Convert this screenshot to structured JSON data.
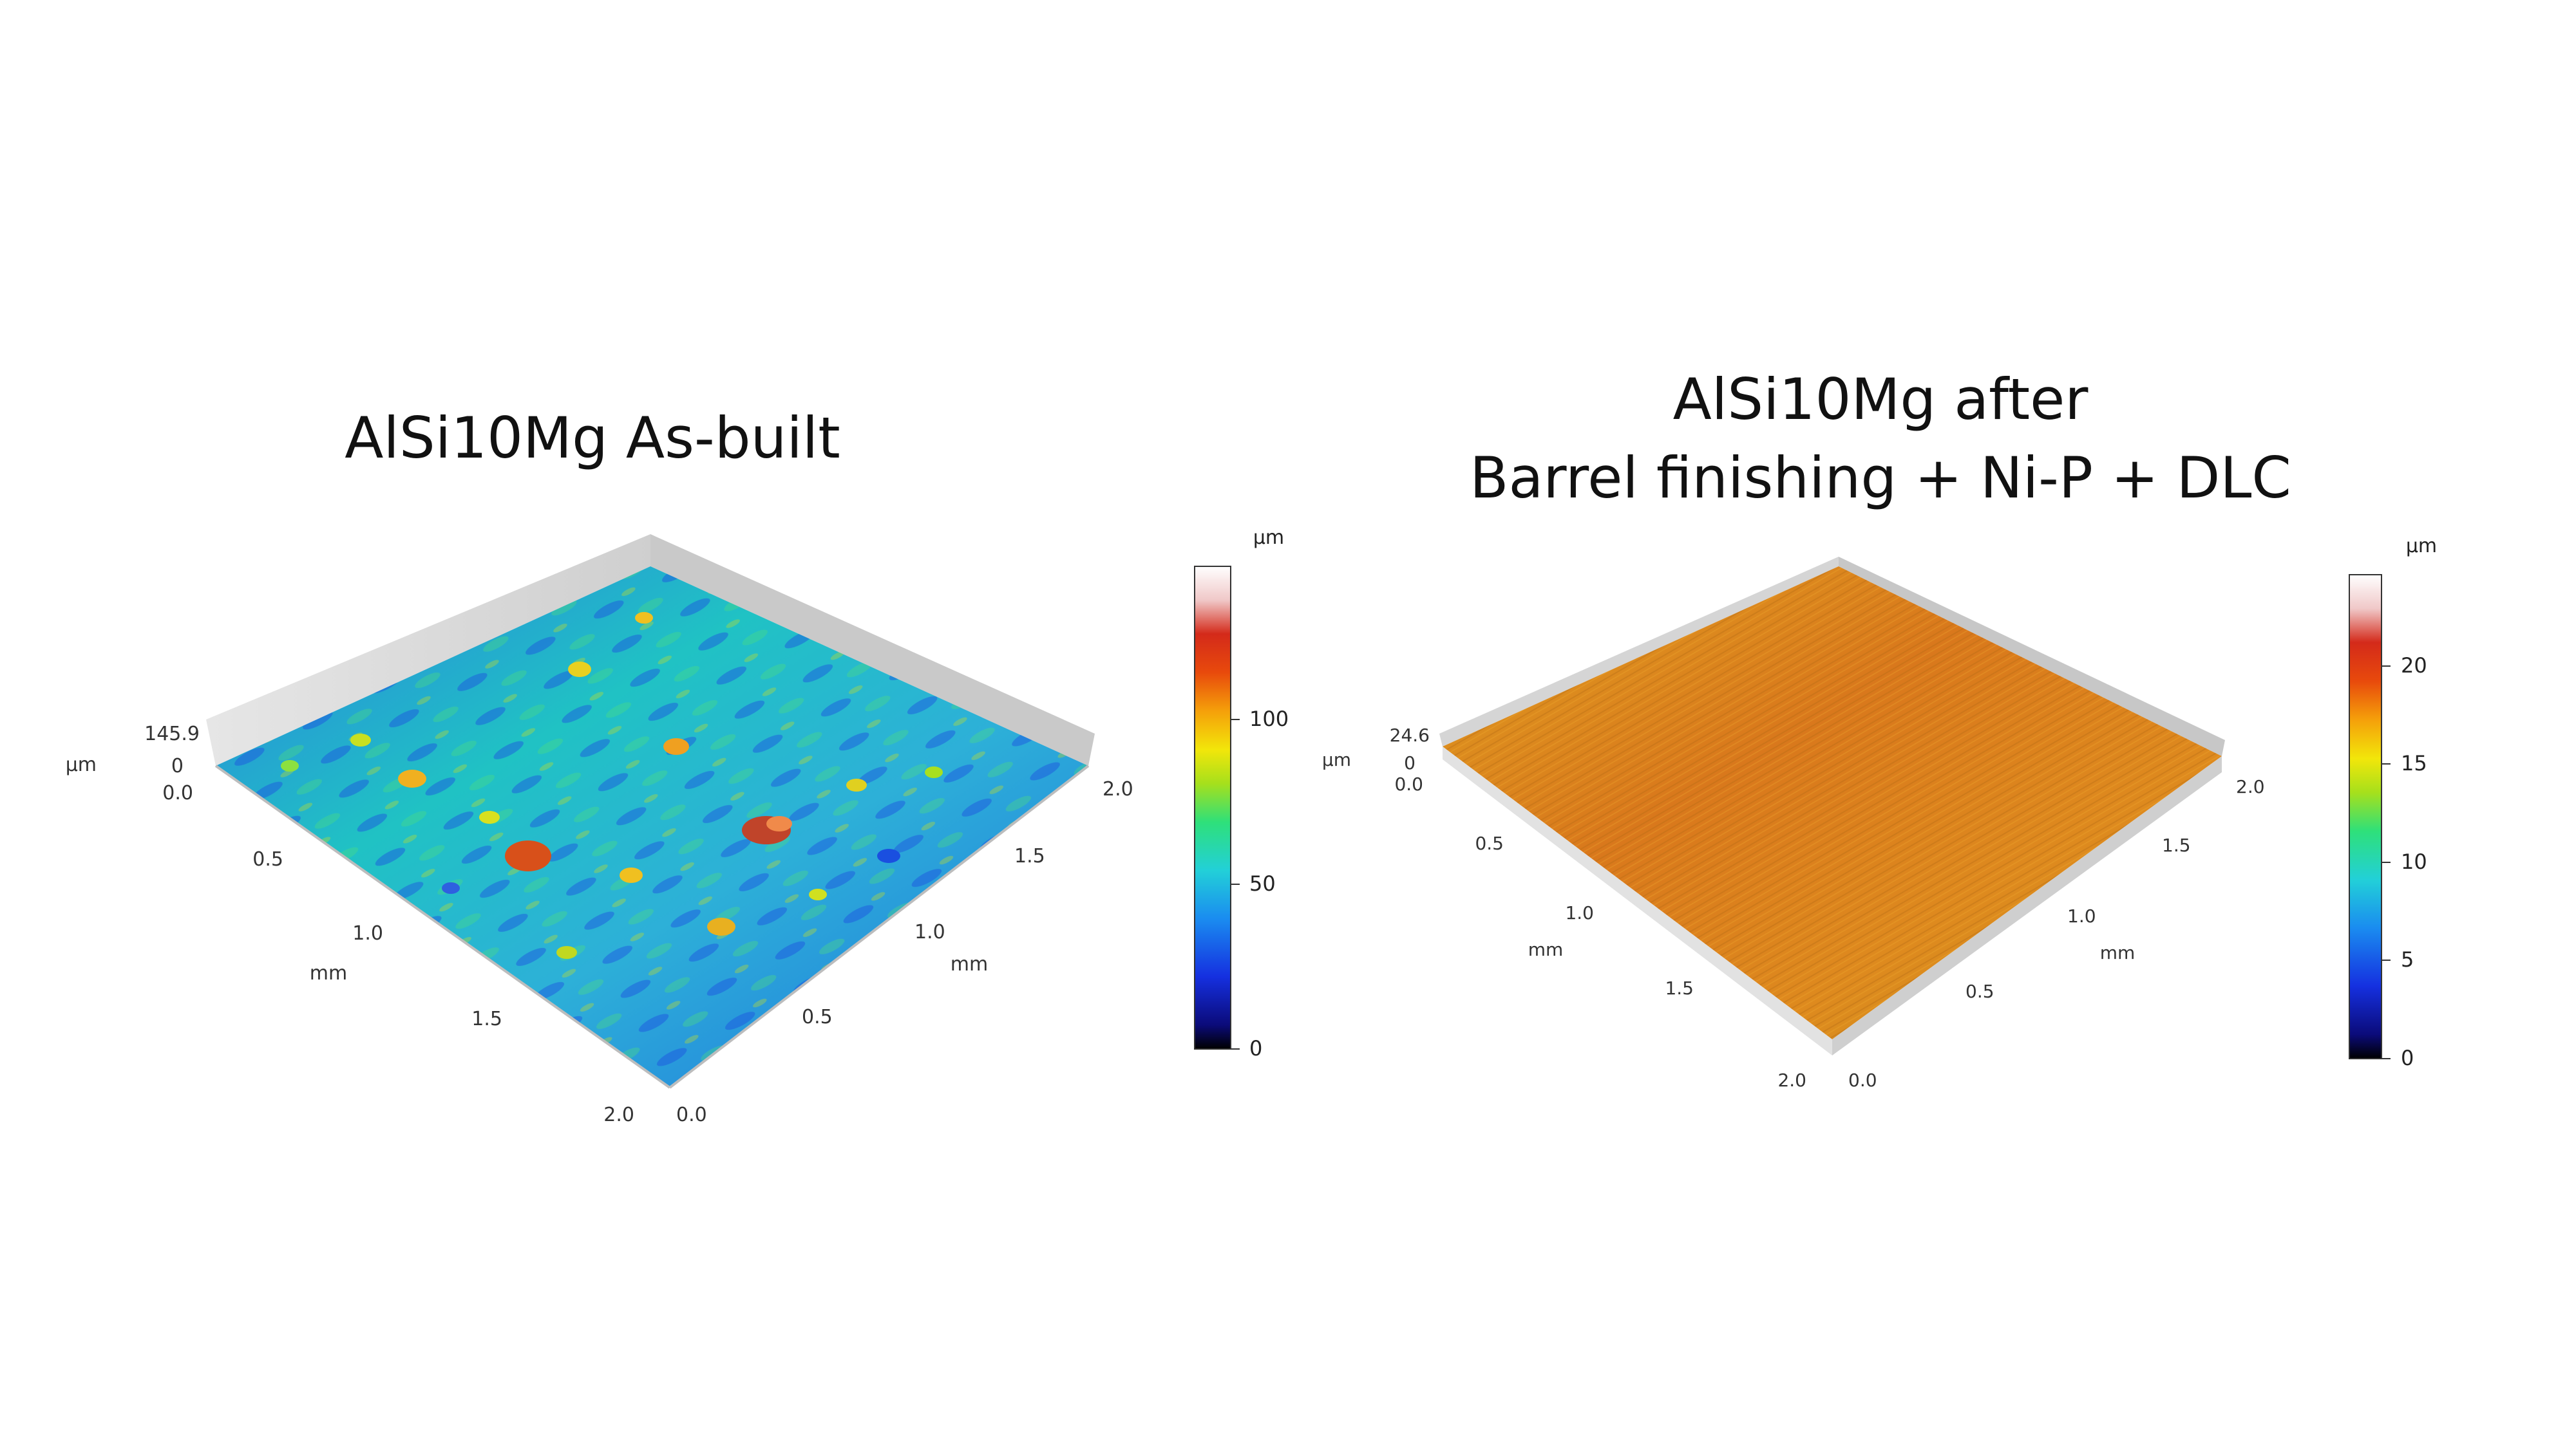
{
  "left_panel": {
    "title": "AlSi10Mg As-built",
    "z_axis": {
      "max_label": "145.9",
      "zero_label": "0",
      "unit": "µm"
    },
    "x_axis": {
      "unit": "mm",
      "ticks": [
        "0.0",
        "0.5",
        "1.0",
        "1.5",
        "2.0"
      ]
    },
    "y_axis": {
      "unit": "mm",
      "ticks": [
        "0.0",
        "0.5",
        "1.0",
        "1.5",
        "2.0"
      ]
    },
    "colorbar": {
      "unit": "µm",
      "ticks": [
        "0",
        "50",
        "100"
      ]
    }
  },
  "right_panel": {
    "title_line1": "AlSi10Mg after",
    "title_line2": "Barrel finishing + Ni-P + DLC",
    "z_axis": {
      "max_label": "24.6",
      "zero_label": "0",
      "unit": "µm"
    },
    "x_axis": {
      "unit": "mm",
      "ticks": [
        "0.0",
        "0.5",
        "1.0",
        "1.5",
        "2.0"
      ]
    },
    "y_axis": {
      "unit": "mm",
      "ticks": [
        "0.0",
        "0.5",
        "1.0",
        "1.5",
        "2.0"
      ]
    },
    "colorbar": {
      "unit": "µm",
      "ticks": [
        "0",
        "5",
        "10",
        "15",
        "20"
      ]
    }
  },
  "colors": {
    "colormap": [
      "#000000",
      "#0b0b7a",
      "#1530e0",
      "#1a8cf0",
      "#22d0d8",
      "#2ee07a",
      "#a6e01c",
      "#f2e60a",
      "#f5a00a",
      "#e84a0c",
      "#d42a1a",
      "#f0c8c8",
      "#ffffff"
    ],
    "left_surface_base": "#1fb6c9",
    "right_surface_base": "#d98a1e",
    "wall": "#dadada"
  }
}
